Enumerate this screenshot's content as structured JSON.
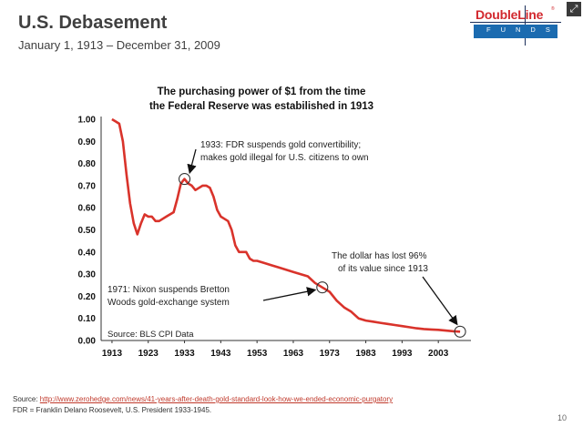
{
  "slide": {
    "title": "U.S. Debasement",
    "subtitle": "January 1, 1913  –  December 31, 2009",
    "source_label": "Source: ",
    "source_url": "http://www.zerohedge.com/news/41-years-after-death-gold-standard-look-how-we-ended-economic-purgatory",
    "footnote": "FDR = Franklin Delano Roosevelt, U.S. President 1933-1945.",
    "page_number": "10",
    "expand_icon": "expand-icon"
  },
  "logo": {
    "brand": "DoubleLine",
    "reg": "®",
    "sub": "FUNDS",
    "colors": {
      "red": "#d2282e",
      "blue": "#1b6bb0",
      "navy": "#1b2f5a"
    }
  },
  "chart_data": {
    "type": "line",
    "title_lines": [
      "The purchasing power of $1 from the time",
      "the Federal Reserve was estabilished in 1913"
    ],
    "xlabel": "",
    "ylabel": "",
    "x_ticks": [
      "1913",
      "1923",
      "1933",
      "1943",
      "1953",
      "1963",
      "1973",
      "1983",
      "1993",
      "2003"
    ],
    "y_ticks": [
      "1.00",
      "0.90",
      "0.80",
      "0.70",
      "0.60",
      "0.50",
      "0.40",
      "0.30",
      "0.20",
      "0.10",
      "0.00"
    ],
    "xlim": [
      1910,
      2012
    ],
    "ylim": [
      0,
      1.0
    ],
    "grid": false,
    "line_color": "#d9332b",
    "series": [
      {
        "x": [
          1913,
          1914,
          1915,
          1916,
          1917,
          1918,
          1919,
          1920,
          1921,
          1922,
          1923,
          1924,
          1925,
          1926,
          1927,
          1928,
          1929,
          1930,
          1931,
          1932,
          1933,
          1934,
          1935,
          1936,
          1937,
          1938,
          1939,
          1940,
          1941,
          1942,
          1943,
          1944,
          1945,
          1946,
          1947,
          1948,
          1949,
          1950,
          1951,
          1952,
          1953,
          1955,
          1957,
          1959,
          1961,
          1963,
          1965,
          1967,
          1969,
          1971,
          1973,
          1975,
          1977,
          1979,
          1981,
          1983,
          1985,
          1987,
          1989,
          1991,
          1993,
          1995,
          1997,
          1999,
          2001,
          2003,
          2005,
          2007,
          2009
        ],
        "y": [
          1.0,
          0.99,
          0.98,
          0.9,
          0.75,
          0.62,
          0.53,
          0.48,
          0.53,
          0.57,
          0.56,
          0.56,
          0.54,
          0.54,
          0.55,
          0.56,
          0.57,
          0.58,
          0.64,
          0.71,
          0.73,
          0.71,
          0.7,
          0.68,
          0.69,
          0.7,
          0.7,
          0.69,
          0.65,
          0.59,
          0.56,
          0.55,
          0.54,
          0.5,
          0.43,
          0.4,
          0.4,
          0.4,
          0.37,
          0.36,
          0.36,
          0.35,
          0.34,
          0.33,
          0.32,
          0.31,
          0.3,
          0.29,
          0.26,
          0.24,
          0.22,
          0.18,
          0.15,
          0.13,
          0.1,
          0.09,
          0.085,
          0.08,
          0.075,
          0.07,
          0.065,
          0.06,
          0.055,
          0.052,
          0.05,
          0.048,
          0.045,
          0.042,
          0.04
        ]
      }
    ],
    "markers": [
      {
        "x": 1933,
        "y": 0.73
      },
      {
        "x": 1971,
        "y": 0.24
      },
      {
        "x": 2009,
        "y": 0.04
      }
    ],
    "annotations": [
      {
        "lines": [
          "1933: FDR suspends gold convertibility;",
          "makes gold illegal for U.S. citizens to own"
        ]
      },
      {
        "lines": [
          "1971: Nixon suspends Bretton",
          "Woods gold-exchange system"
        ]
      },
      {
        "lines": [
          "The dollar has lost 96%",
          "of its value since 1913"
        ]
      }
    ],
    "source_note": "Source: BLS CPI Data"
  }
}
